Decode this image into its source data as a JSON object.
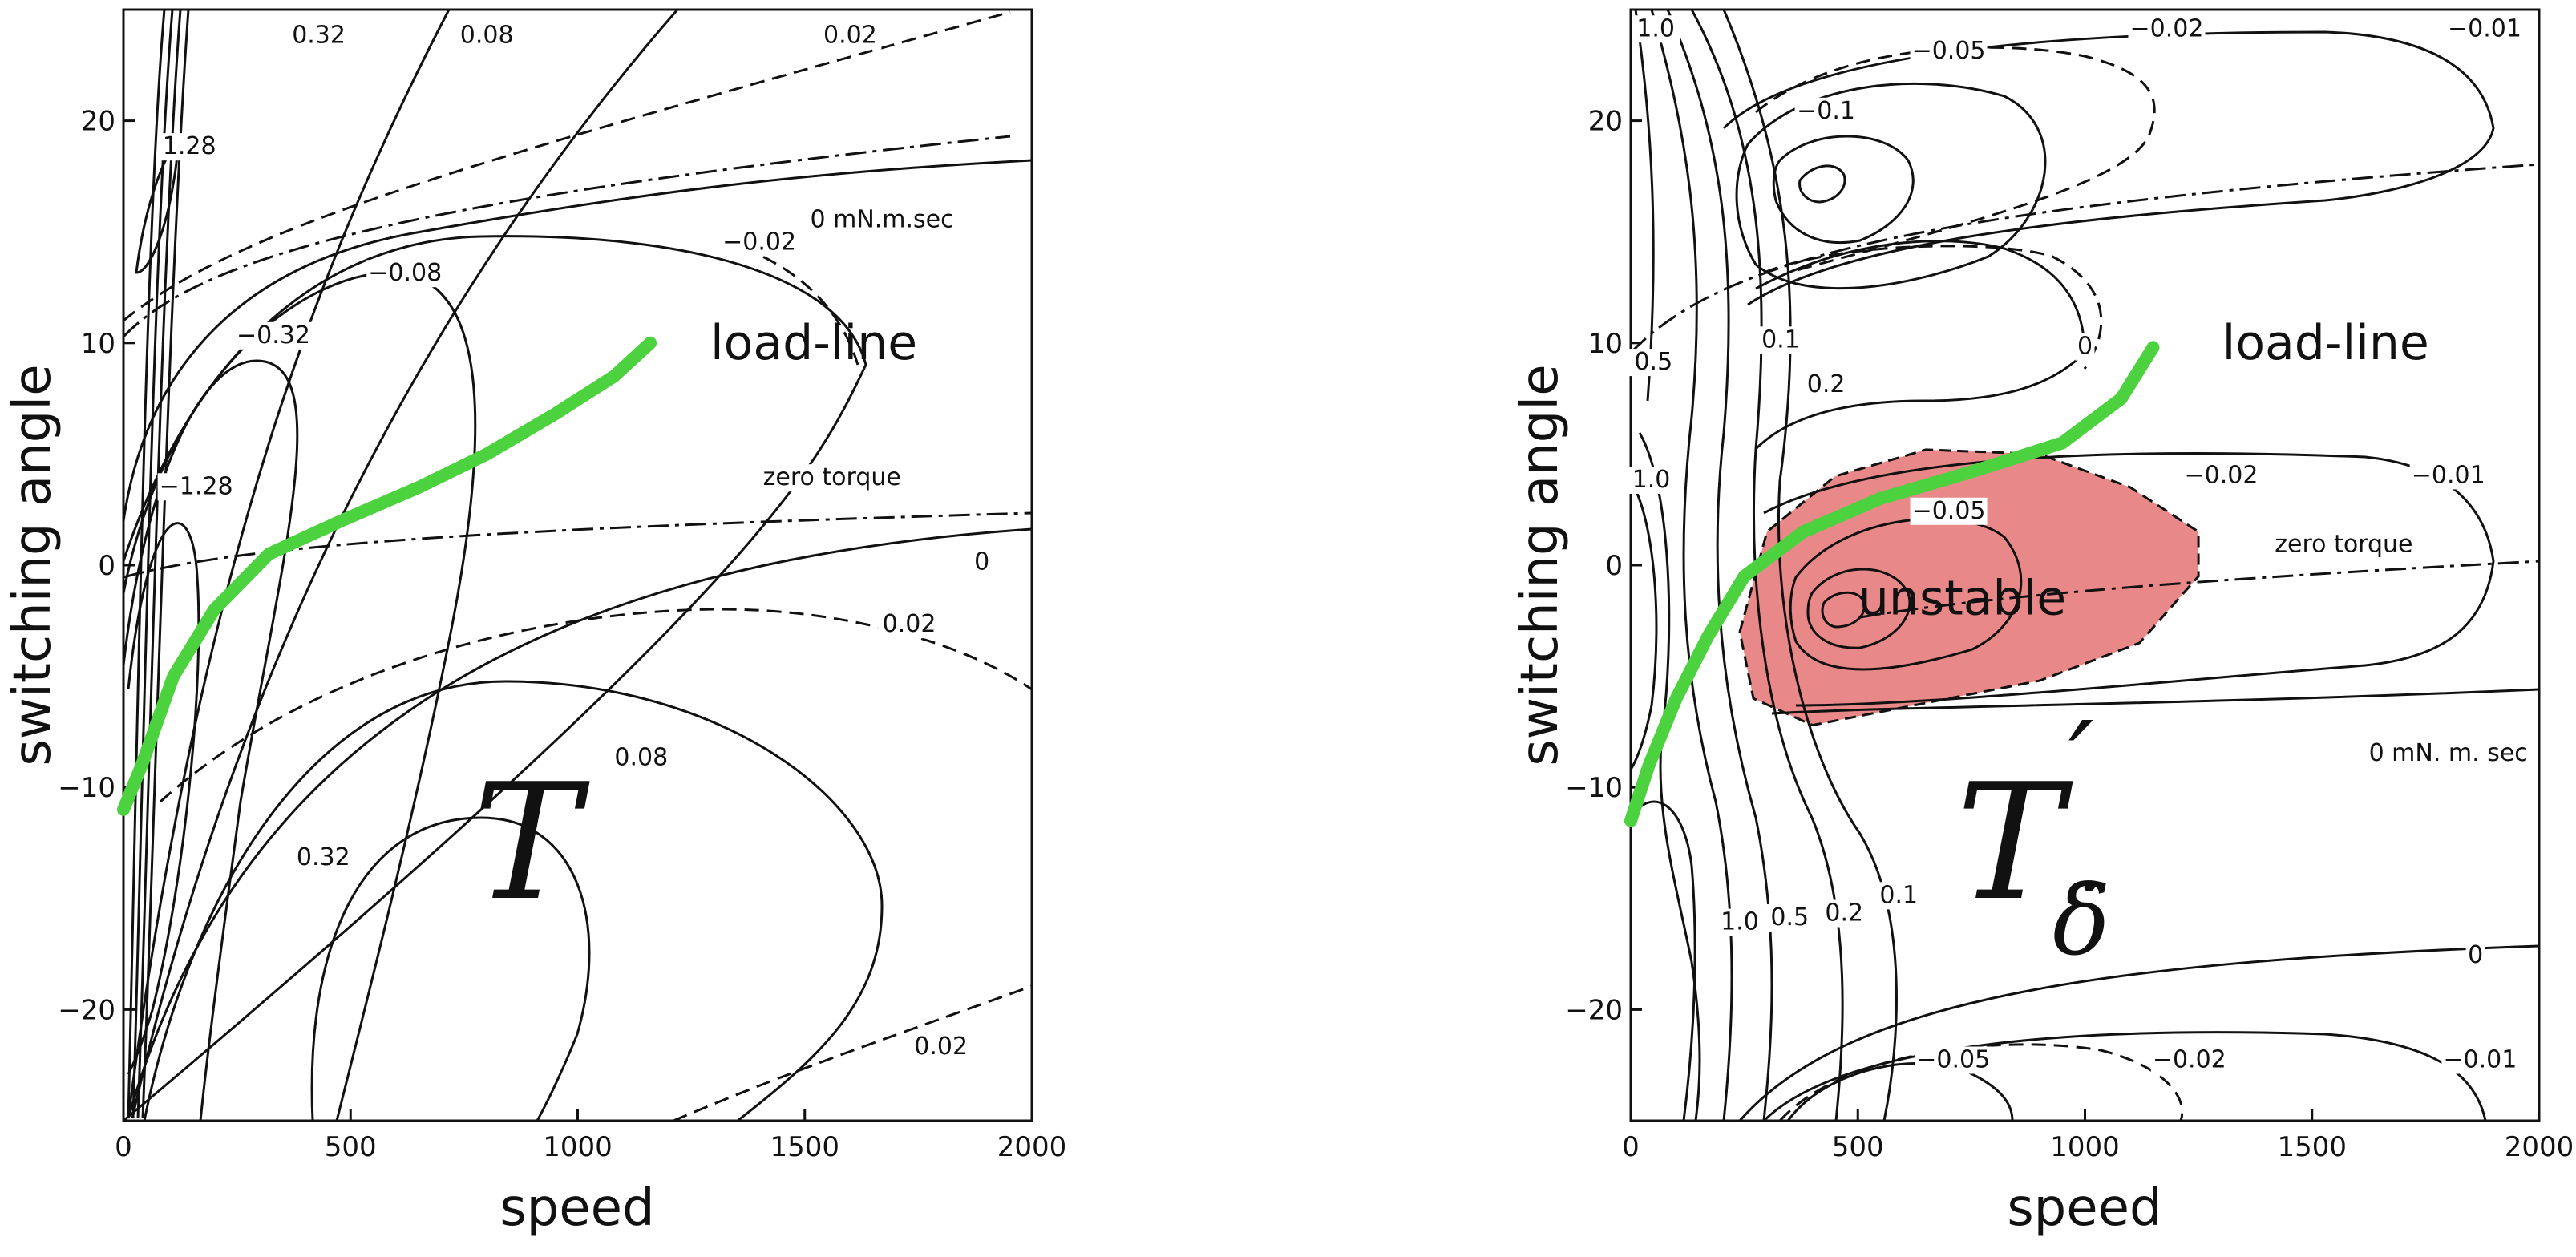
{
  "chart_data": [
    {
      "type": "contour",
      "xlabel": "speed",
      "ylabel": "switching angle",
      "xlim": [
        0,
        2000
      ],
      "ylim": [
        -25,
        25
      ],
      "x_ticks": [
        0,
        500,
        1000,
        1500,
        2000
      ],
      "y_ticks": [
        -20,
        -10,
        0,
        10,
        20
      ],
      "symbol": "T",
      "symbol_subscript": "",
      "symbol_prime": "",
      "contour_labels": [
        {
          "text": "0.32",
          "x": 430,
          "y": 23.5
        },
        {
          "text": "0.08",
          "x": 800,
          "y": 23.5
        },
        {
          "text": "0.02",
          "x": 1600,
          "y": 23.5
        },
        {
          "text": "1.28",
          "x": 145,
          "y": 18.5
        },
        {
          "text": "0 mN.m.sec",
          "x": 1670,
          "y": 15.2
        },
        {
          "text": "−0.02",
          "x": 1400,
          "y": 14.2
        },
        {
          "text": "−0.08",
          "x": 620,
          "y": 12.8
        },
        {
          "text": "−0.32",
          "x": 330,
          "y": 10.0
        },
        {
          "text": "−1.28",
          "x": 160,
          "y": 3.2
        },
        {
          "text": "zero torque",
          "x": 1560,
          "y": 3.6
        },
        {
          "text": "0",
          "x": 1890,
          "y": -0.2
        },
        {
          "text": "0.02",
          "x": 1730,
          "y": -3.0
        },
        {
          "text": "0.08",
          "x": 1140,
          "y": -9.0
        },
        {
          "text": "0.32",
          "x": 440,
          "y": -13.5
        },
        {
          "text": "0.02",
          "x": 1800,
          "y": -22.0
        }
      ],
      "annotations": [
        {
          "text": "load-line",
          "x": 1520,
          "y": 10
        }
      ],
      "load_line": {
        "x": [
          0,
          40,
          110,
          200,
          320,
          480,
          650,
          800,
          950,
          1080,
          1160
        ],
        "y": [
          -11,
          -9,
          -5,
          -2,
          0.5,
          2,
          3.5,
          5,
          6.8,
          8.5,
          10
        ]
      }
    },
    {
      "type": "contour",
      "xlabel": "speed",
      "ylabel": "switching angle",
      "xlim": [
        0,
        2000
      ],
      "ylim": [
        -25,
        25
      ],
      "x_ticks": [
        0,
        500,
        1000,
        1500,
        2000
      ],
      "y_ticks": [
        -20,
        -10,
        0,
        10,
        20
      ],
      "symbol": "T",
      "symbol_subscript": "δ̇",
      "symbol_prime": "′",
      "contour_labels": [
        {
          "text": "1.0",
          "x": 55,
          "y": 23.8
        },
        {
          "text": "−0.05",
          "x": 700,
          "y": 22.8
        },
        {
          "text": "−0.02",
          "x": 1180,
          "y": 23.8
        },
        {
          "text": "−0.01",
          "x": 1880,
          "y": 23.8
        },
        {
          "text": "−0.1",
          "x": 430,
          "y": 20.1
        },
        {
          "text": "0.5",
          "x": 50,
          "y": 8.8
        },
        {
          "text": "0.1",
          "x": 330,
          "y": 9.8
        },
        {
          "text": "0",
          "x": 1000,
          "y": 9.5
        },
        {
          "text": "0.2",
          "x": 430,
          "y": 7.8
        },
        {
          "text": "1.0",
          "x": 45,
          "y": 3.5
        },
        {
          "text": "−0.02",
          "x": 1300,
          "y": 3.7
        },
        {
          "text": "−0.01",
          "x": 1800,
          "y": 3.7
        },
        {
          "text": "−0.05",
          "x": 700,
          "y": 2.1
        },
        {
          "text": "zero torque",
          "x": 1570,
          "y": 0.6
        },
        {
          "text": "0 mN. m. sec",
          "x": 1800,
          "y": -8.8
        },
        {
          "text": "0.1",
          "x": 590,
          "y": -15.2
        },
        {
          "text": "0.2",
          "x": 470,
          "y": -16.0
        },
        {
          "text": "0.5",
          "x": 350,
          "y": -16.2
        },
        {
          "text": "1.0",
          "x": 240,
          "y": -16.4
        },
        {
          "text": "0",
          "x": 1860,
          "y": -17.9
        },
        {
          "text": "−0.05",
          "x": 710,
          "y": -22.6
        },
        {
          "text": "−0.02",
          "x": 1230,
          "y": -22.6
        },
        {
          "text": "−0.01",
          "x": 1870,
          "y": -22.6
        }
      ],
      "annotations": [
        {
          "text": "load-line",
          "x": 1530,
          "y": 10
        },
        {
          "text": "unstable",
          "x": 730,
          "y": -1.5
        }
      ],
      "unstable_region": {
        "x": [
          240,
          300,
          450,
          650,
          900,
          1100,
          1250,
          1250,
          1120,
          900,
          650,
          400,
          270,
          240
        ],
        "y": [
          -3,
          1.5,
          4,
          5.2,
          5,
          3.5,
          1.5,
          -0.5,
          -3.5,
          -5.2,
          -6.2,
          -7.2,
          -6,
          -3
        ]
      },
      "load_line": {
        "x": [
          0,
          40,
          100,
          170,
          250,
          380,
          550,
          750,
          950,
          1080,
          1150
        ],
        "y": [
          -11.5,
          -9,
          -6,
          -3.2,
          -0.5,
          1.5,
          3,
          4.2,
          5.5,
          7.5,
          9.8
        ]
      }
    }
  ]
}
